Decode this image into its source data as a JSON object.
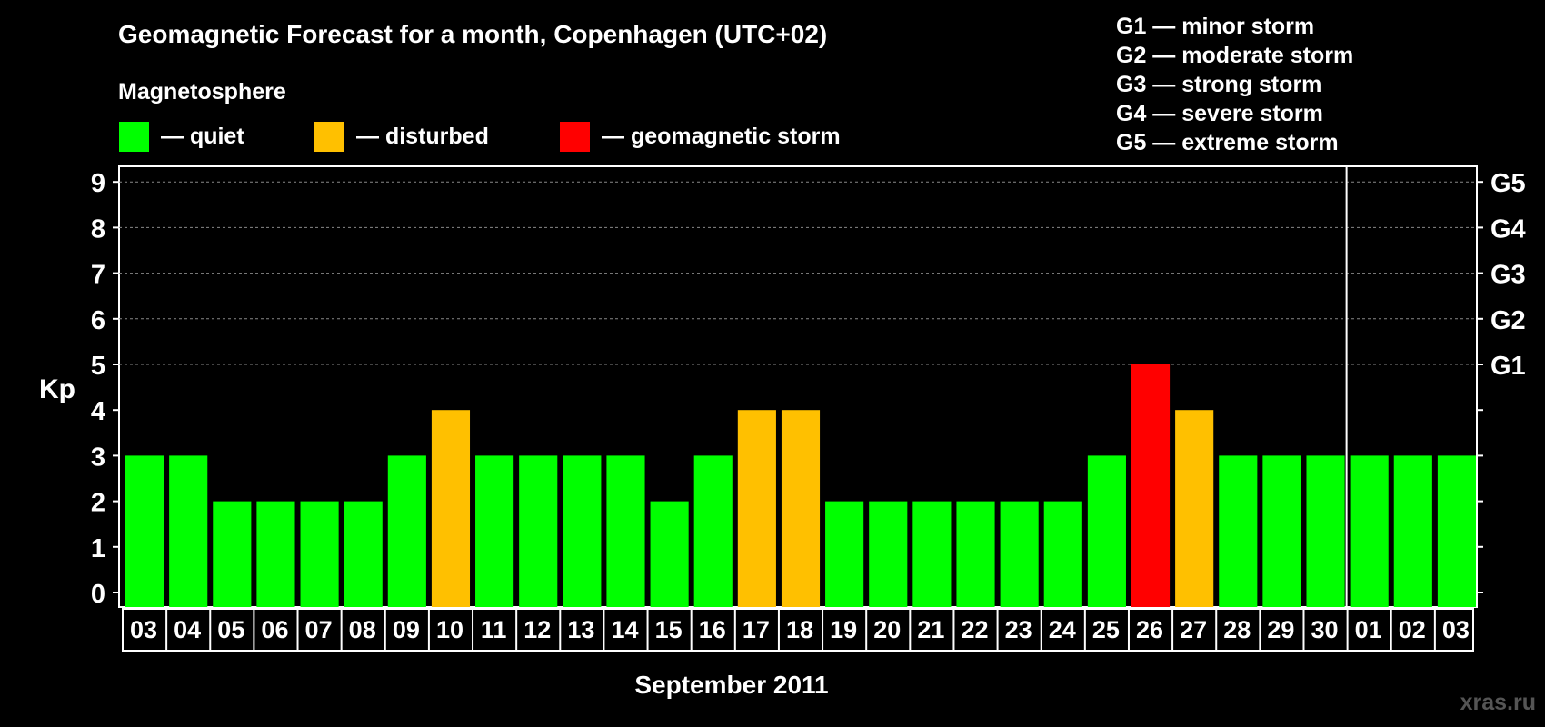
{
  "chart_data": {
    "type": "bar",
    "title": "Geomagnetic Forecast for a month, Copenhagen (UTC+02)",
    "subtitle": "Magnetosphere",
    "xlabel": "September 2011",
    "ylabel": "Kp",
    "ylim": [
      0,
      9
    ],
    "yticks": [
      "0",
      "1",
      "2",
      "3",
      "4",
      "5",
      "6",
      "7",
      "8",
      "9"
    ],
    "right_axis_labels": [
      {
        "kp": 5,
        "label": "G1"
      },
      {
        "kp": 6,
        "label": "G2"
      },
      {
        "kp": 7,
        "label": "G3"
      },
      {
        "kp": 8,
        "label": "G4"
      },
      {
        "kp": 9,
        "label": "G5"
      }
    ],
    "categories": [
      "03",
      "04",
      "05",
      "06",
      "07",
      "08",
      "09",
      "10",
      "11",
      "12",
      "13",
      "14",
      "15",
      "16",
      "17",
      "18",
      "19",
      "20",
      "21",
      "22",
      "23",
      "24",
      "25",
      "26",
      "27",
      "28",
      "29",
      "30",
      "01",
      "02",
      "03"
    ],
    "values": [
      3,
      3,
      2,
      2,
      2,
      2,
      3,
      4,
      3,
      3,
      3,
      3,
      2,
      3,
      4,
      4,
      2,
      2,
      2,
      2,
      2,
      2,
      3,
      5,
      4,
      3,
      3,
      3,
      3,
      3,
      3
    ],
    "month_divider_after_index": 27,
    "grid": "dashed at Kp 5 to 9",
    "legend": [
      {
        "label": "— quiet",
        "color": "#00ff00",
        "rule": "Kp < 4"
      },
      {
        "label": "— disturbed",
        "color": "#ffc000",
        "rule": "Kp = 4"
      },
      {
        "label": "— geomagnetic storm",
        "color": "#ff0000",
        "rule": "Kp >= 5"
      }
    ],
    "storm_scale": [
      "G1 — minor storm",
      "G2 — moderate storm",
      "G3 — strong storm",
      "G4 — severe storm",
      "G5 — extreme storm"
    ]
  },
  "watermark": "xras.ru"
}
